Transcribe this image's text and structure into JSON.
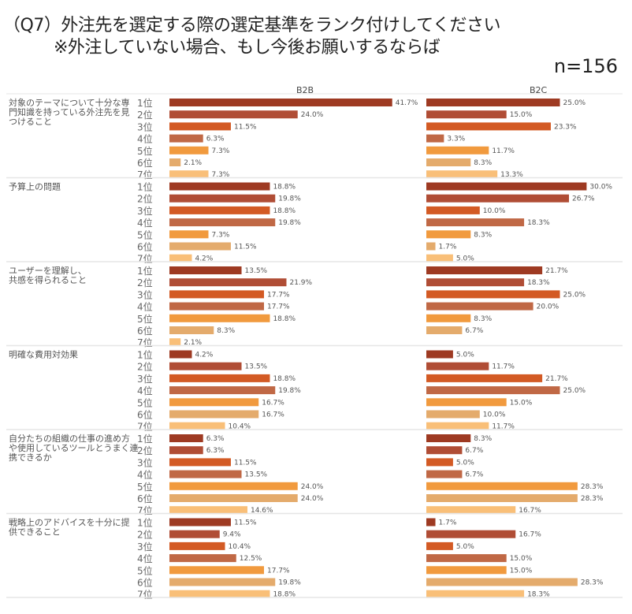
{
  "chart_data": {
    "type": "bar",
    "orientation": "horizontal",
    "title": "（Q7）外注先を選定する際の選定基準をランク付けしてください",
    "subtitle": "※外注していない場合、もし今後お願いするならば",
    "sample_size_label": "n=156",
    "panels": [
      "B2B",
      "B2C"
    ],
    "ranks": [
      "1位",
      "2位",
      "3位",
      "4位",
      "5位",
      "6位",
      "7位"
    ],
    "rank_colors": [
      "#9e3a22",
      "#b04d35",
      "#d35a24",
      "#c06845",
      "#f19a3e",
      "#e4ab6c",
      "#f9bf78"
    ],
    "unit": "%",
    "groups": [
      {
        "label_lines": [
          "対象のテーマについて十分な専",
          "門知識を持っている外注先を見",
          "つけること"
        ],
        "B2B": [
          41.7,
          24.0,
          11.5,
          6.3,
          7.3,
          2.1,
          7.3
        ],
        "B2C": [
          25.0,
          15.0,
          23.3,
          3.3,
          11.7,
          8.3,
          13.3
        ]
      },
      {
        "label_lines": [
          "予算上の問題"
        ],
        "B2B": [
          18.8,
          19.8,
          18.8,
          19.8,
          7.3,
          11.5,
          4.2
        ],
        "B2C": [
          30.0,
          26.7,
          10.0,
          18.3,
          8.3,
          1.7,
          5.0
        ]
      },
      {
        "label_lines": [
          "ユーザーを理解し、",
          "共感を得られること"
        ],
        "B2B": [
          13.5,
          21.9,
          17.7,
          17.7,
          18.8,
          8.3,
          2.1
        ],
        "B2C": [
          21.7,
          18.3,
          25.0,
          20.0,
          8.3,
          6.7,
          null
        ]
      },
      {
        "label_lines": [
          "明確な費用対効果"
        ],
        "B2B": [
          4.2,
          13.5,
          18.8,
          19.8,
          16.7,
          16.7,
          10.4
        ],
        "B2C": [
          5.0,
          11.7,
          21.7,
          25.0,
          15.0,
          10.0,
          11.7
        ]
      },
      {
        "label_lines": [
          "自分たちの組織の仕事の進め方",
          "や使用しているツールとうまく連",
          "携できるか"
        ],
        "B2B": [
          6.3,
          6.3,
          11.5,
          13.5,
          24.0,
          24.0,
          14.6
        ],
        "B2C": [
          8.3,
          6.7,
          5.0,
          6.7,
          28.3,
          28.3,
          16.7
        ]
      },
      {
        "label_lines": [
          "戦略上のアドバイスを十分に提",
          "供できること"
        ],
        "B2B": [
          11.5,
          9.4,
          10.4,
          12.5,
          17.7,
          19.8,
          18.8
        ],
        "B2C": [
          1.7,
          16.7,
          5.0,
          15.0,
          15.0,
          28.3,
          18.3
        ]
      }
    ]
  }
}
